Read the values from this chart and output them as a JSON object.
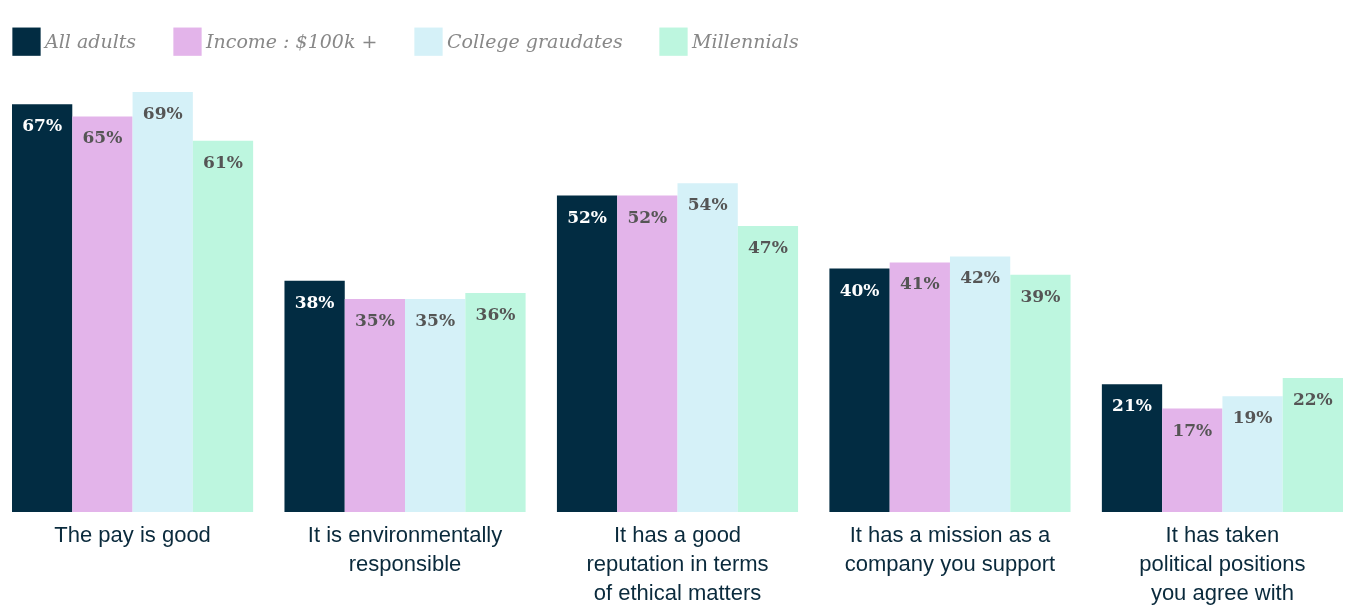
{
  "chart_data": {
    "type": "bar",
    "categories": [
      "The pay is good",
      "It is environmentally responsible",
      "It has a good reputation in terms of ethical matters",
      "It has a mission as a company you support",
      "It has taken political positions you agree with"
    ],
    "series": [
      {
        "name": "All adults",
        "color": "#022c42",
        "values": [
          67,
          38,
          52,
          40,
          21
        ],
        "value_labels": [
          "67%",
          "38%",
          "52%",
          "40%",
          "21%"
        ]
      },
      {
        "name": "Income : $100k +",
        "color": "#e3b4ea",
        "values": [
          65,
          35,
          52,
          41,
          17
        ],
        "value_labels": [
          "65%",
          "35%",
          "52%",
          "41%",
          "17%"
        ]
      },
      {
        "name": "College graudates",
        "color": "#d5f1f8",
        "values": [
          69,
          35,
          54,
          42,
          19
        ],
        "value_labels": [
          "69%",
          "35%",
          "54%",
          "42%",
          "19%"
        ]
      },
      {
        "name": "Millennials",
        "color": "#bdf6df",
        "values": [
          61,
          36,
          47,
          39,
          22
        ],
        "value_labels": [
          "61%",
          "36%",
          "47%",
          "39%",
          "22%"
        ]
      }
    ],
    "legend": "top left"
  }
}
